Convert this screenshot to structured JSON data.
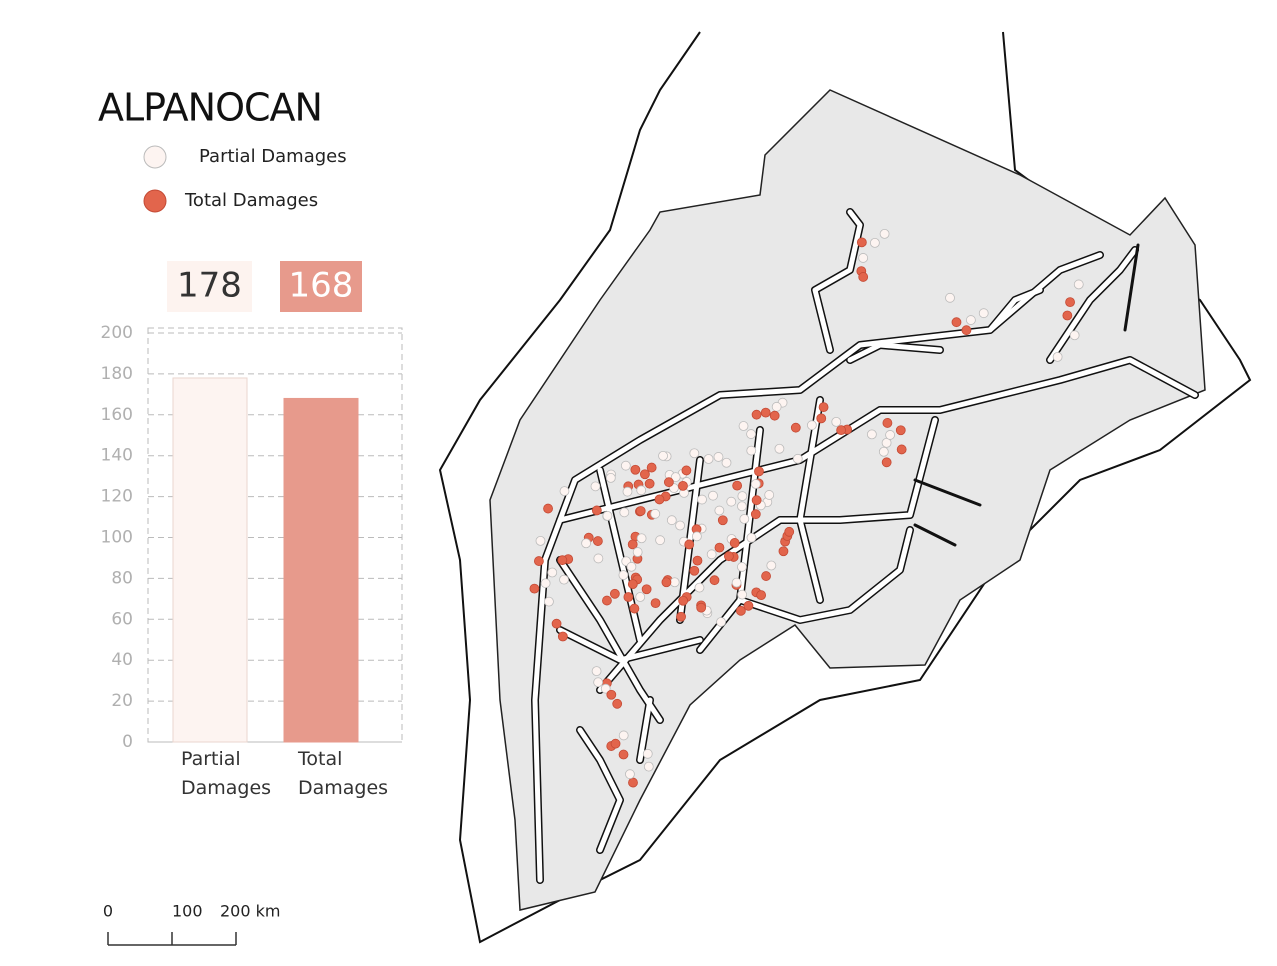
{
  "map": {
    "title": "ALPANOCAN",
    "legend": [
      {
        "label": "Partial Damages",
        "color": "#fdf4f1"
      },
      {
        "label": "Total Damages",
        "color": "#e2654c"
      }
    ],
    "scale_bar": {
      "ticks": [
        0,
        100,
        {
          "value": 200,
          "label": "200 km"
        }
      ]
    }
  },
  "chart_data": {
    "type": "bar",
    "categories": [
      "Partial Damages",
      "Total Damages"
    ],
    "values": [
      178,
      168
    ],
    "colors": [
      "#fdf4f1",
      "#e79a8c"
    ],
    "ylim": [
      0,
      200
    ],
    "yticks": [
      0,
      20,
      40,
      60,
      80,
      100,
      120,
      140,
      160,
      180,
      200
    ],
    "grid": true
  }
}
